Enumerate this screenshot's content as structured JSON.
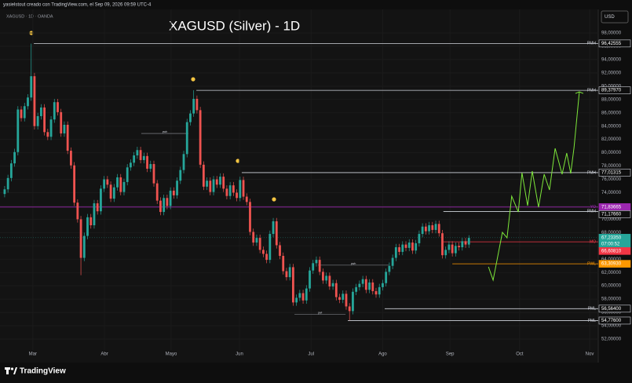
{
  "header": {
    "author_line": "yasielstout creado con TradingView.com, el Sep 09, 2026 09:59 UTC-4",
    "symbol_line": "XAGUSD · 1D · OANDA"
  },
  "footer": {
    "brand": "TradingView"
  },
  "chart_data": {
    "type": "candlestick",
    "title": "XAGUSD (Silver) - 1D",
    "currency": "USD",
    "up_color": "#26a69a",
    "down_color": "#ef5350",
    "grid": true,
    "xlim": [
      -1.4,
      179
    ],
    "ylim": [
      48.46,
      101.54
    ],
    "xticks": [
      {
        "value": 8.5,
        "label": "Mar"
      },
      {
        "value": 30.1,
        "label": "Abr"
      },
      {
        "value": 50.2,
        "label": "Mayo"
      },
      {
        "value": 70.8,
        "label": "Jun"
      },
      {
        "value": 92.4,
        "label": "Jul"
      },
      {
        "value": 114.0,
        "label": "Ago"
      },
      {
        "value": 134.3,
        "label": "Sep"
      },
      {
        "value": 155.3,
        "label": "Oct"
      },
      {
        "value": 176.4,
        "label": "Nov"
      }
    ],
    "yticks": [
      {
        "value": 52,
        "label": "52,00000"
      },
      {
        "value": 54,
        "label": "54,00000"
      },
      {
        "value": 56,
        "label": "56,00000"
      },
      {
        "value": 58,
        "label": "58,00000"
      },
      {
        "value": 60,
        "label": "60,00000"
      },
      {
        "value": 62,
        "label": "62,00000"
      },
      {
        "value": 64,
        "label": "64,00000"
      },
      {
        "value": 66,
        "label": "66,00000"
      },
      {
        "value": 68,
        "label": "68,00000"
      },
      {
        "value": 70,
        "label": "70,00000"
      },
      {
        "value": 72,
        "label": "72,00000"
      },
      {
        "value": 74,
        "label": "74,00000"
      },
      {
        "value": 76,
        "label": "76,00000"
      },
      {
        "value": 78,
        "label": "78,00000"
      },
      {
        "value": 80,
        "label": "80,00000"
      },
      {
        "value": 82,
        "label": "82,00000"
      },
      {
        "value": 84,
        "label": "84,00000"
      },
      {
        "value": 86,
        "label": "86,00000"
      },
      {
        "value": 88,
        "label": "88,00000"
      },
      {
        "value": 90,
        "label": "90,00000"
      },
      {
        "value": 92,
        "label": "92,00000"
      },
      {
        "value": 94,
        "label": "94,00000"
      },
      {
        "value": 96,
        "label": "96,00000"
      },
      {
        "value": 98,
        "label": "98,00000"
      }
    ],
    "candles": [
      [
        73.8,
        75.0,
        73.3,
        74.5
      ],
      [
        74.5,
        76.7,
        74.0,
        76.2
      ],
      [
        76.2,
        78.9,
        75.7,
        78.4
      ],
      [
        78.4,
        80.6,
        77.9,
        80.1
      ],
      [
        80.1,
        87.0,
        79.6,
        86.5
      ],
      [
        86.5,
        87.0,
        84.7,
        85.2
      ],
      [
        85.2,
        87.5,
        84.7,
        87.0
      ],
      [
        87.0,
        88.8,
        86.5,
        88.3
      ],
      [
        88.3,
        96.4,
        87.8,
        91.5
      ],
      [
        91.5,
        92.0,
        83.5,
        84.0
      ],
      [
        84.0,
        86.0,
        83.5,
        85.5
      ],
      [
        85.5,
        87.3,
        85.0,
        86.8
      ],
      [
        86.8,
        87.3,
        82.6,
        83.1
      ],
      [
        83.1,
        83.6,
        81.9,
        82.4
      ],
      [
        82.4,
        85.5,
        81.9,
        85.0
      ],
      [
        85.0,
        88.1,
        84.5,
        87.6
      ],
      [
        87.6,
        88.1,
        85.6,
        86.1
      ],
      [
        86.1,
        86.6,
        82.4,
        82.9
      ],
      [
        82.9,
        84.7,
        82.4,
        84.2
      ],
      [
        84.2,
        84.7,
        79.8,
        80.3
      ],
      [
        80.3,
        80.8,
        77.6,
        78.1
      ],
      [
        78.1,
        78.6,
        72.0,
        72.5
      ],
      [
        72.5,
        73.0,
        69.5,
        70.0
      ],
      [
        70.0,
        70.5,
        61.6,
        64.2
      ],
      [
        64.2,
        68.0,
        63.7,
        67.5
      ],
      [
        67.5,
        70.8,
        67.0,
        70.3
      ],
      [
        70.3,
        70.8,
        68.6,
        69.1
      ],
      [
        69.1,
        72.9,
        68.6,
        72.4
      ],
      [
        72.4,
        72.9,
        70.7,
        71.2
      ],
      [
        71.2,
        75.1,
        70.7,
        74.6
      ],
      [
        74.6,
        76.5,
        74.1,
        76.0
      ],
      [
        76.0,
        76.5,
        74.7,
        75.2
      ],
      [
        75.2,
        75.7,
        72.6,
        73.1
      ],
      [
        73.1,
        75.3,
        72.6,
        74.8
      ],
      [
        74.8,
        76.8,
        74.3,
        76.3
      ],
      [
        76.3,
        76.8,
        73.6,
        74.1
      ],
      [
        74.1,
        76.1,
        73.6,
        75.6
      ],
      [
        75.6,
        78.3,
        75.1,
        77.8
      ],
      [
        77.8,
        79.0,
        77.3,
        78.5
      ],
      [
        78.5,
        80.1,
        78.0,
        79.6
      ],
      [
        79.6,
        80.9,
        79.1,
        80.4
      ],
      [
        80.4,
        80.9,
        78.4,
        78.9
      ],
      [
        78.9,
        80.0,
        78.4,
        79.5
      ],
      [
        79.5,
        80.0,
        77.1,
        77.6
      ],
      [
        77.6,
        78.8,
        77.1,
        78.3
      ],
      [
        78.3,
        78.8,
        74.9,
        75.4
      ],
      [
        75.4,
        75.9,
        72.3,
        72.8
      ],
      [
        72.8,
        73.3,
        70.6,
        71.1
      ],
      [
        71.1,
        73.7,
        70.6,
        73.2
      ],
      [
        73.2,
        73.7,
        71.5,
        72.0
      ],
      [
        72.0,
        74.8,
        71.5,
        74.3
      ],
      [
        74.3,
        74.8,
        73.1,
        73.6
      ],
      [
        73.6,
        76.3,
        73.1,
        75.8
      ],
      [
        75.8,
        77.9,
        75.3,
        77.4
      ],
      [
        77.4,
        80.3,
        76.9,
        79.8
      ],
      [
        79.8,
        85.1,
        79.3,
        84.6
      ],
      [
        84.6,
        86.4,
        84.1,
        85.9
      ],
      [
        85.9,
        89.4,
        85.4,
        88.1
      ],
      [
        88.1,
        88.6,
        85.9,
        86.4
      ],
      [
        86.4,
        86.9,
        77.7,
        78.2
      ],
      [
        78.2,
        78.7,
        74.4,
        74.9
      ],
      [
        74.9,
        76.3,
        74.4,
        75.8
      ],
      [
        75.8,
        76.3,
        73.6,
        74.1
      ],
      [
        74.1,
        76.5,
        73.6,
        76.0
      ],
      [
        76.0,
        76.5,
        74.7,
        75.2
      ],
      [
        75.2,
        76.9,
        74.7,
        76.4
      ],
      [
        76.4,
        76.9,
        74.1,
        74.6
      ],
      [
        74.6,
        75.1,
        73.0,
        73.5
      ],
      [
        73.5,
        75.6,
        73.0,
        75.1
      ],
      [
        75.1,
        75.6,
        73.5,
        74.0
      ],
      [
        74.0,
        74.5,
        72.7,
        73.2
      ],
      [
        73.2,
        76.4,
        72.7,
        75.9
      ],
      [
        75.9,
        76.4,
        72.9,
        73.4
      ],
      [
        73.4,
        73.9,
        72.1,
        72.6
      ],
      [
        72.6,
        73.1,
        67.6,
        68.1
      ],
      [
        68.1,
        68.6,
        66.0,
        66.5
      ],
      [
        66.5,
        67.7,
        66.0,
        67.2
      ],
      [
        67.2,
        67.7,
        64.9,
        65.4
      ],
      [
        65.4,
        65.9,
        64.3,
        64.8
      ],
      [
        64.8,
        65.3,
        63.4,
        63.9
      ],
      [
        63.9,
        68.3,
        63.4,
        67.8
      ],
      [
        67.8,
        70.2,
        67.3,
        69.7
      ],
      [
        69.7,
        70.2,
        65.6,
        66.1
      ],
      [
        66.1,
        66.6,
        64.0,
        64.5
      ],
      [
        64.5,
        65.0,
        61.7,
        62.2
      ],
      [
        62.2,
        62.7,
        60.8,
        61.3
      ],
      [
        61.3,
        63.3,
        60.8,
        62.8
      ],
      [
        62.8,
        63.3,
        57.0,
        57.5
      ],
      [
        57.5,
        58.7,
        57.0,
        58.2
      ],
      [
        58.2,
        59.4,
        57.7,
        58.9
      ],
      [
        58.9,
        59.4,
        57.3,
        57.8
      ],
      [
        57.8,
        60.1,
        57.3,
        59.6
      ],
      [
        59.6,
        62.8,
        59.1,
        62.3
      ],
      [
        62.3,
        63.9,
        61.8,
        63.4
      ],
      [
        63.4,
        64.4,
        62.9,
        63.9
      ],
      [
        63.9,
        64.4,
        61.6,
        62.1
      ],
      [
        62.1,
        62.6,
        60.3,
        60.8
      ],
      [
        60.8,
        62.0,
        60.3,
        61.5
      ],
      [
        61.5,
        62.0,
        59.4,
        59.9
      ],
      [
        59.9,
        60.9,
        59.4,
        60.4
      ],
      [
        60.4,
        60.9,
        57.8,
        58.3
      ],
      [
        58.3,
        58.8,
        57.4,
        57.9
      ],
      [
        57.9,
        59.3,
        57.4,
        58.8
      ],
      [
        58.8,
        59.3,
        56.4,
        56.9
      ],
      [
        56.9,
        57.4,
        54.8,
        56.2
      ],
      [
        56.2,
        59.6,
        55.7,
        59.1
      ],
      [
        59.1,
        60.3,
        58.6,
        59.8
      ],
      [
        59.8,
        60.8,
        59.3,
        60.3
      ],
      [
        60.3,
        61.5,
        59.8,
        61.0
      ],
      [
        61.0,
        61.5,
        58.9,
        59.4
      ],
      [
        59.4,
        61.0,
        58.9,
        60.5
      ],
      [
        60.5,
        61.0,
        58.7,
        59.2
      ],
      [
        59.2,
        59.7,
        58.2,
        58.7
      ],
      [
        58.7,
        60.3,
        58.2,
        59.8
      ],
      [
        59.8,
        60.9,
        59.3,
        60.4
      ],
      [
        60.4,
        62.6,
        59.9,
        62.1
      ],
      [
        62.1,
        63.5,
        61.6,
        63.0
      ],
      [
        63.0,
        64.7,
        62.5,
        64.2
      ],
      [
        64.2,
        66.3,
        63.7,
        65.8
      ],
      [
        65.8,
        66.3,
        64.6,
        65.1
      ],
      [
        65.1,
        66.7,
        64.6,
        66.2
      ],
      [
        66.2,
        66.7,
        65.2,
        65.7
      ],
      [
        65.7,
        67.0,
        65.2,
        66.5
      ],
      [
        66.5,
        67.0,
        64.8,
        65.3
      ],
      [
        65.3,
        66.9,
        64.8,
        66.4
      ],
      [
        66.4,
        68.3,
        65.9,
        67.8
      ],
      [
        67.8,
        69.4,
        67.3,
        68.9
      ],
      [
        68.9,
        69.4,
        67.7,
        68.2
      ],
      [
        68.2,
        69.6,
        67.7,
        69.1
      ],
      [
        69.1,
        69.6,
        67.9,
        68.4
      ],
      [
        68.4,
        69.8,
        67.9,
        69.3
      ],
      [
        69.3,
        69.8,
        67.4,
        67.9
      ],
      [
        67.9,
        68.4,
        64.1,
        64.6
      ],
      [
        64.6,
        65.9,
        64.1,
        65.4
      ],
      [
        65.4,
        66.7,
        64.9,
        66.2
      ],
      [
        66.2,
        66.7,
        64.4,
        64.9
      ],
      [
        64.9,
        66.5,
        64.4,
        66.0
      ],
      [
        66.0,
        66.5,
        65.3,
        65.8
      ],
      [
        65.8,
        67.2,
        65.3,
        66.7
      ],
      [
        66.7,
        67.2,
        65.7,
        66.2
      ],
      [
        66.2,
        67.6,
        65.7,
        67.2
      ]
    ],
    "levels": [
      {
        "name": "PMH",
        "value": 96.42555,
        "label": "96,42555",
        "start": 8.8,
        "color": "#d1d4dc"
      },
      {
        "name": "PMH",
        "value": 89.3797,
        "label": "89,37970",
        "start": 57.8,
        "color": "#d1d4dc"
      },
      {
        "name": "PMH",
        "value": 77.01315,
        "label": "77,01315",
        "start": 71.5,
        "color": "#d1d4dc"
      },
      {
        "name": "YO",
        "value": 71.83665,
        "label": "71,83665",
        "start": -1.4,
        "color": "#9c27b0"
      },
      {
        "name": "PMH",
        "value": 71.1766,
        "label": "71,17660",
        "start": 132.3,
        "color": "#d1d4dc"
      },
      {
        "name": "MO",
        "value": 66.6081,
        "label": "66,60810",
        "start": 132.3,
        "color": "#f23645"
      },
      {
        "name": "PWL",
        "value": 63.3093,
        "label": "63,30930",
        "start": 135,
        "color": "#ff9800"
      },
      {
        "name": "PML",
        "value": 56.564,
        "label": "56,56400",
        "start": 114.6,
        "color": "#d1d4dc"
      },
      {
        "name": "PML",
        "value": 54.776,
        "label": "54,77600",
        "start": 103.5,
        "color": "#d1d4dc"
      }
    ],
    "annotations": [
      {
        "text": "pwh",
        "x1": 41.2,
        "x2": 55.4,
        "y": 82.9
      },
      {
        "text": "pwh",
        "x1": 94.5,
        "x2": 115.8,
        "y": 63.1
      },
      {
        "text": "pwl",
        "x1": 87.4,
        "x2": 102.8,
        "y": 55.7
      }
    ],
    "last_price": {
      "value": 67.2335,
      "label": "67,23350",
      "countdown": "07:00:52",
      "color": "#26a69a"
    },
    "projection": {
      "color": "#7ee83a",
      "x": [
        145.9,
        147.3,
        150.1,
        151.5,
        152.9,
        154.9,
        156.0,
        157.7,
        159.1,
        161.0,
        162.7,
        164.3,
        166.0,
        168.1,
        169.5,
        170.7,
        171.7,
        173.3
      ],
      "y": [
        62.85,
        60.85,
        68.04,
        67.21,
        73.47,
        71.1,
        77.0,
        72.05,
        77.24,
        71.81,
        76.77,
        74.41,
        80.66,
        76.77,
        79.95,
        76.89,
        80.78,
        89.15
      ]
    }
  }
}
